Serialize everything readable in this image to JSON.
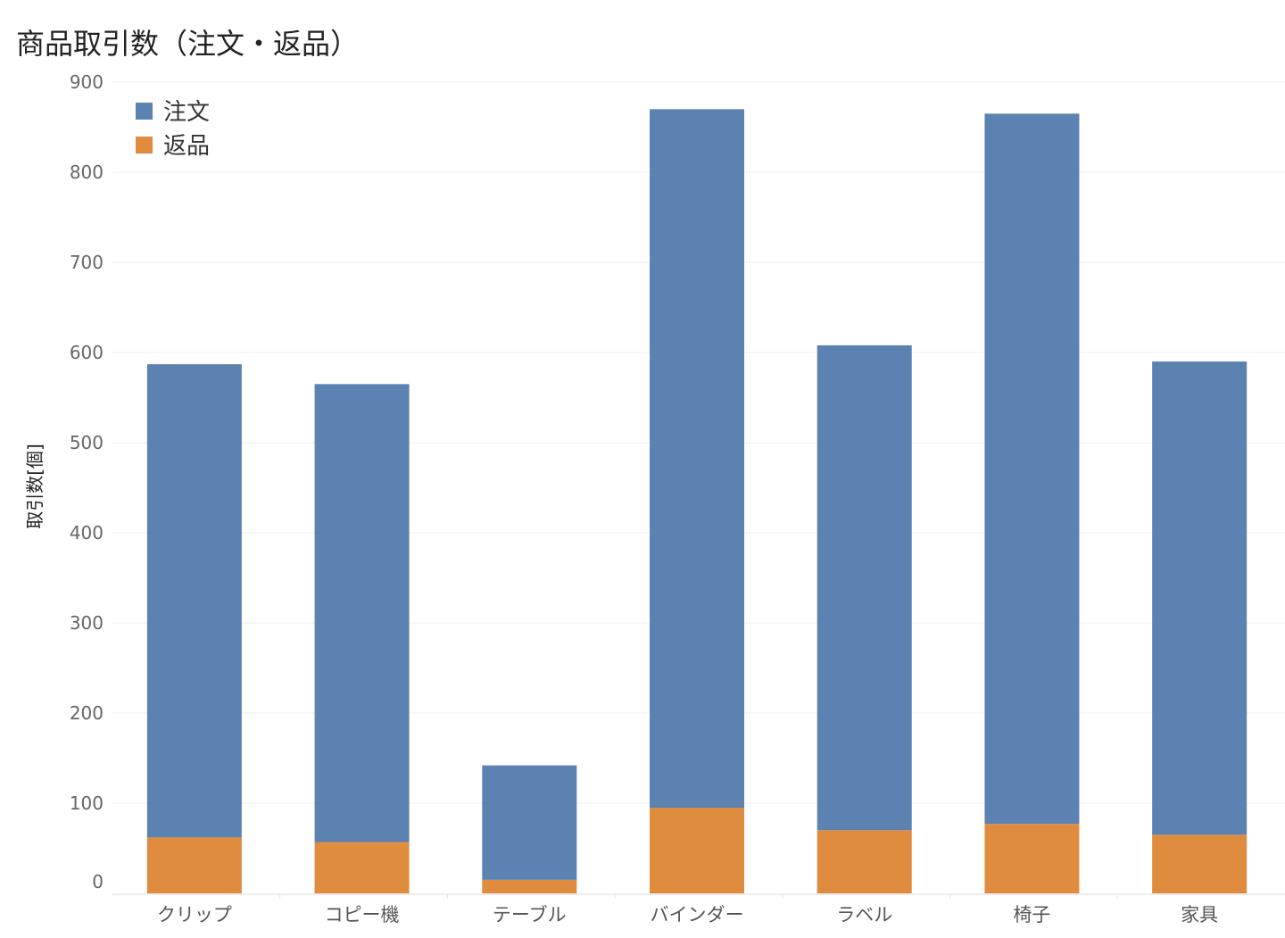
{
  "chart_data": {
    "type": "bar",
    "stacked": true,
    "title": "商品取引数（注文・返品）",
    "ylabel": "取引数[個]",
    "xlabel": "",
    "ylim": [
      0,
      900
    ],
    "yticks": [
      0,
      100,
      200,
      300,
      400,
      500,
      600,
      700,
      800,
      900
    ],
    "grid": true,
    "legend": "top-left",
    "categories": [
      "クリップ",
      "コピー機",
      "テーブル",
      "バインダー",
      "ラベル",
      "椅子",
      "家具"
    ],
    "series": [
      {
        "name": "返品",
        "color": "#e08c3e",
        "values": [
          62,
          57,
          15,
          95,
          70,
          77,
          65
        ]
      },
      {
        "name": "注文",
        "color": "#5b82b0",
        "values": [
          525,
          508,
          127,
          775,
          538,
          788,
          525
        ]
      }
    ]
  }
}
